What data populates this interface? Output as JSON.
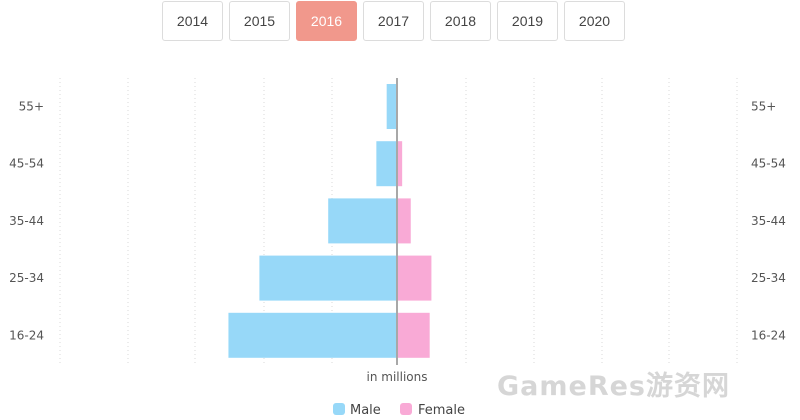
{
  "year_tabs": {
    "items": [
      "2014",
      "2015",
      "2016",
      "2017",
      "2018",
      "2019",
      "2020"
    ],
    "selected": "2016"
  },
  "chart_data": {
    "type": "bar",
    "orientation": "horizontal",
    "layout": "population-pyramid",
    "categories": [
      "55+",
      "45-54",
      "35-44",
      "25-34",
      "16-24"
    ],
    "series": [
      {
        "name": "Male",
        "values": [
          0.3,
          0.6,
          2.0,
          4.0,
          4.9
        ],
        "color": "#97d8f8",
        "side": "left"
      },
      {
        "name": "Female",
        "values": [
          0.0,
          0.15,
          0.4,
          1.0,
          0.95
        ],
        "color": "#f9aad6",
        "side": "right"
      }
    ],
    "xlabel": "in millions",
    "xlim": [
      -10,
      10
    ],
    "grid": true,
    "grid_style": "dotted vertical",
    "legend": "bottom-center"
  },
  "watermark": "GameRes游资网"
}
